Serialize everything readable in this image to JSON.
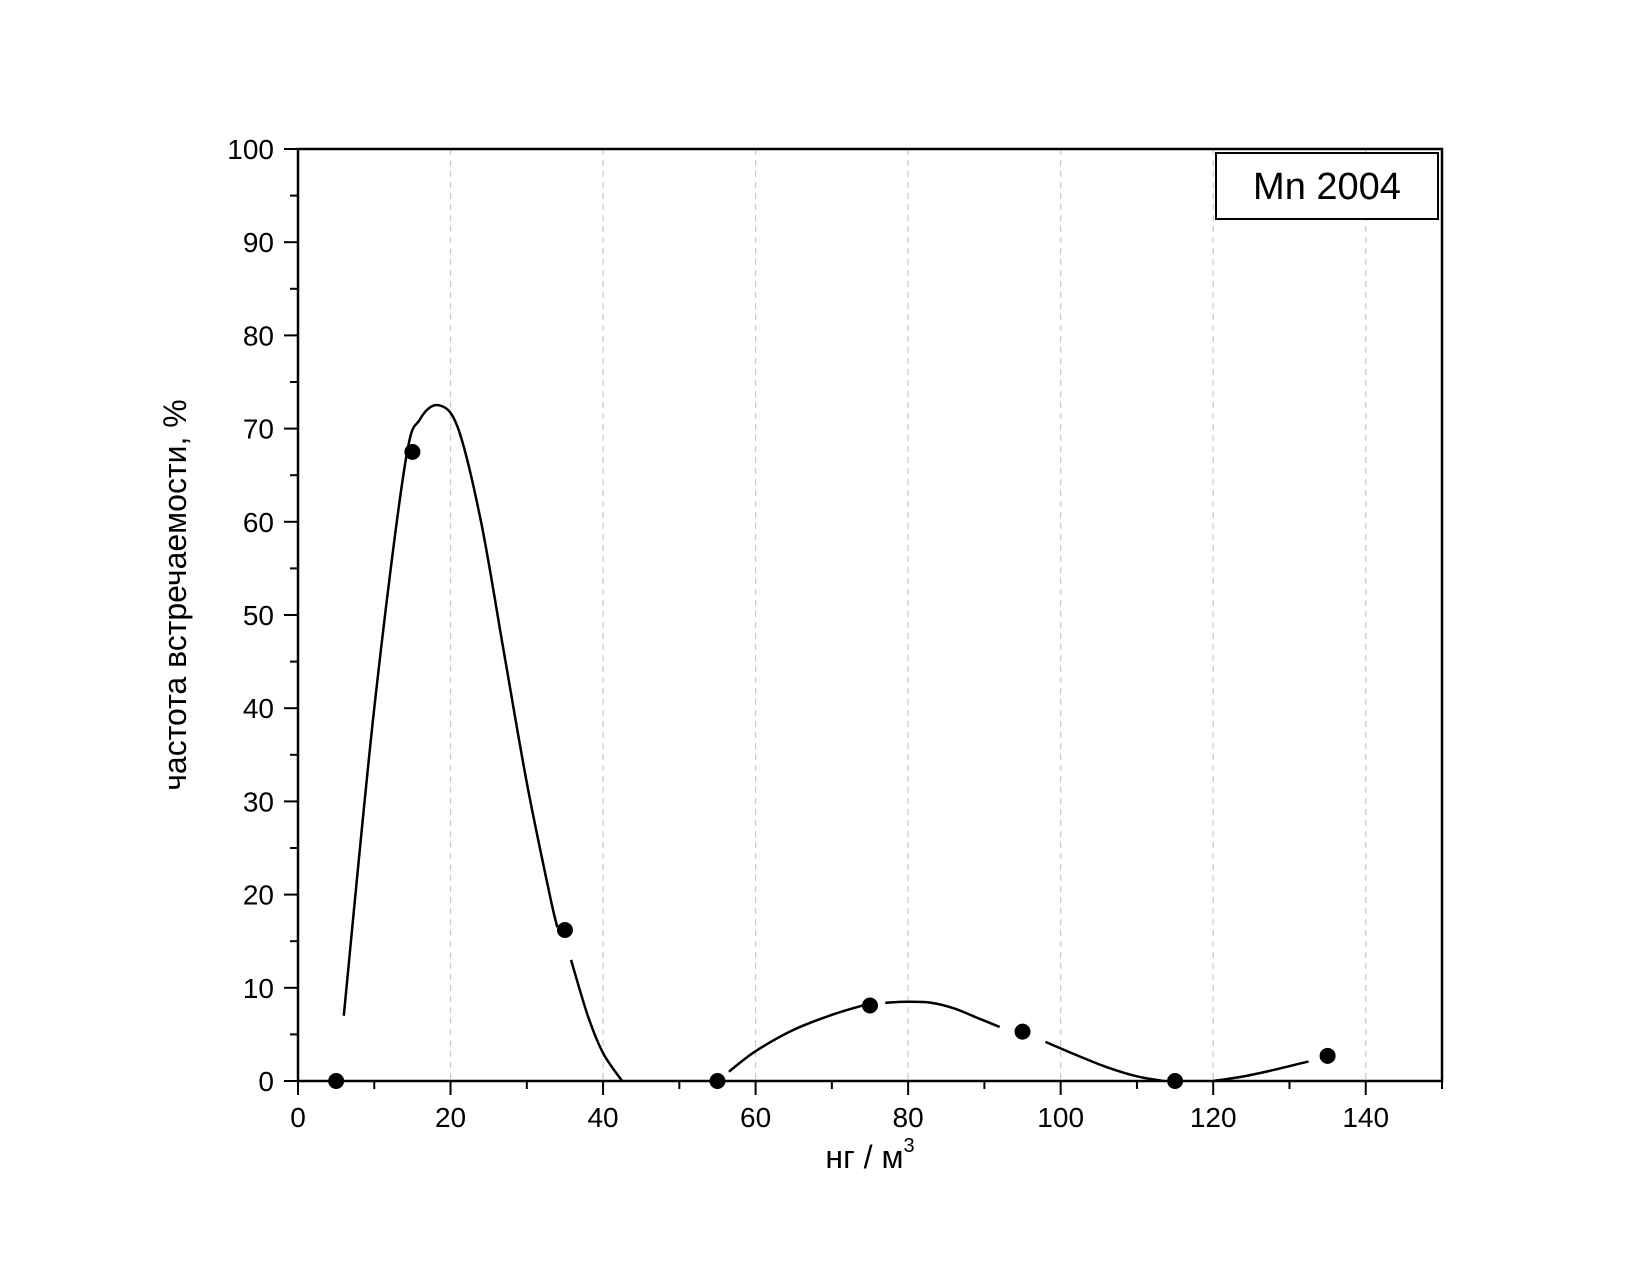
{
  "chart_data": {
    "type": "scatter",
    "title": "",
    "xlabel": "нг / м",
    "xlabel_superscript": "3",
    "ylabel": "частота встречаемости, %",
    "xlim": [
      0,
      150
    ],
    "ylim": [
      0,
      100
    ],
    "x_ticks": [
      0,
      20,
      40,
      60,
      80,
      100,
      120,
      140
    ],
    "y_ticks": [
      0,
      10,
      20,
      30,
      40,
      50,
      60,
      70,
      80,
      90,
      100
    ],
    "x_tick_labels": [
      "0",
      "20",
      "40",
      "60",
      "80",
      "100",
      "120",
      "140"
    ],
    "y_tick_labels": [
      "0",
      "10",
      "20",
      "30",
      "40",
      "50",
      "60",
      "70",
      "80",
      "90",
      "100"
    ],
    "grid": "vertical-dashed",
    "legend": {
      "text": "Mn 2004",
      "placement": "top-right"
    },
    "series": [
      {
        "x": [
          5,
          15,
          35,
          55,
          75,
          95,
          115,
          135
        ],
        "y": [
          0,
          67.5,
          16.2,
          0,
          8.1,
          5.3,
          0,
          2.7
        ],
        "color": "#000000"
      }
    ],
    "fit_curves": [
      {
        "x": [
          6,
          10,
          14,
          16,
          18.5,
          21,
          24,
          27,
          30,
          33,
          34
        ],
        "y": [
          7,
          40,
          66,
          71,
          72.5,
          70,
          60,
          46,
          32,
          20,
          16.5
        ]
      },
      {
        "x": [
          35.8,
          38,
          40,
          42.5
        ],
        "y": [
          13,
          7,
          3,
          0
        ]
      },
      {
        "x": [
          56.5,
          60,
          65,
          70,
          74
        ],
        "y": [
          1,
          3.2,
          5.5,
          7.1,
          8.1
        ]
      },
      {
        "x": [
          77,
          80,
          83,
          86,
          89,
          92
        ],
        "y": [
          8.4,
          8.5,
          8.4,
          7.8,
          6.8,
          5.8
        ]
      },
      {
        "x": [
          98,
          102,
          106,
          110,
          113.5
        ],
        "y": [
          4.2,
          2.8,
          1.5,
          0.5,
          0
        ]
      },
      {
        "x": [
          120,
          124,
          128,
          132.5
        ],
        "y": [
          0,
          0.5,
          1.2,
          2.1
        ]
      }
    ]
  }
}
